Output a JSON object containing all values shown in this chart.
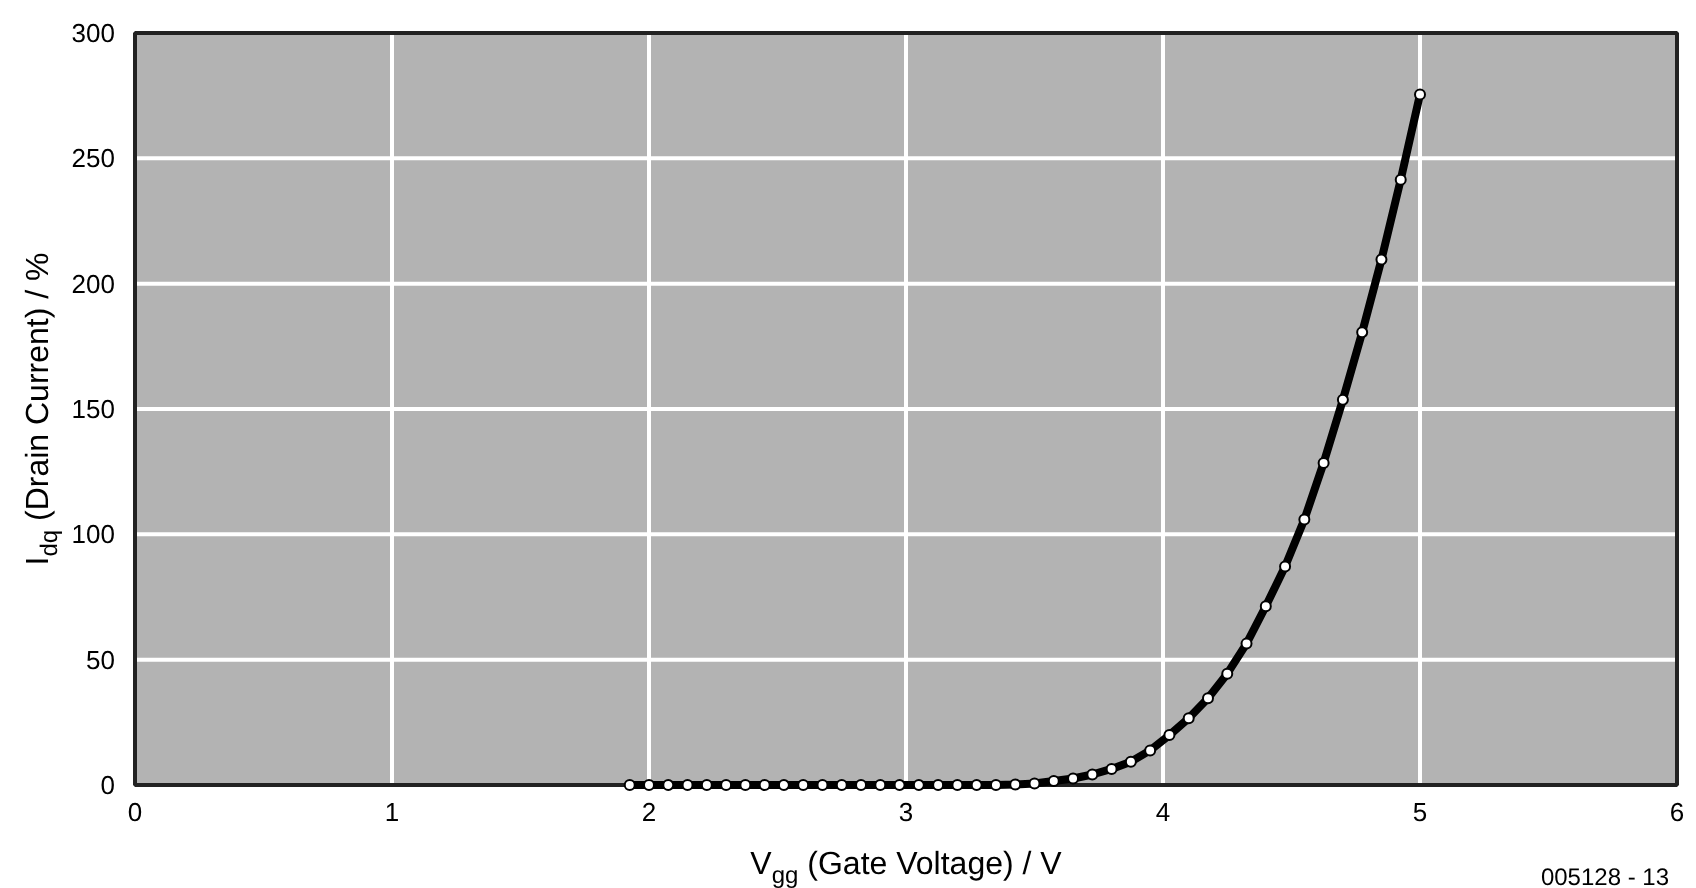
{
  "chart_data": {
    "type": "line",
    "xlabel": "V$_{gg}$ (Gate Voltage) / V",
    "ylabel": "I$_{dq}$ (Drain Current) / %",
    "annotations": [
      "005128 - 13"
    ],
    "x": [
      1.925,
      2.0,
      2.075,
      2.15,
      2.225,
      2.3,
      2.375,
      2.45,
      2.525,
      2.6,
      2.675,
      2.75,
      2.825,
      2.9,
      2.975,
      3.05,
      3.125,
      3.2,
      3.275,
      3.35,
      3.425,
      3.5,
      3.575,
      3.65,
      3.725,
      3.8,
      3.875,
      3.95,
      4.025,
      4.1,
      4.175,
      4.25,
      4.325,
      4.4,
      4.475,
      4.55,
      4.625,
      4.7,
      4.775,
      4.85,
      4.925,
      5.0
    ],
    "series": [
      {
        "color": "#000000",
        "values": [
          0,
          0,
          0,
          0,
          0,
          0,
          0,
          0,
          0,
          0,
          0,
          0,
          0,
          0,
          0,
          0,
          0,
          0,
          0,
          0,
          0.2,
          0.6,
          1.6,
          2.6,
          4.2,
          6.4,
          9.3,
          13.8,
          19.9,
          26.6,
          34.6,
          44.4,
          56.4,
          71.3,
          87.2,
          105.9,
          128.5,
          153.7,
          180.6,
          209.6,
          241.5,
          275.5
        ]
      }
    ],
    "xlim": [
      0,
      6
    ],
    "ylim": [
      0,
      300
    ],
    "xticks": [
      0,
      1,
      2,
      3,
      4,
      5,
      6
    ],
    "yticks": [
      0,
      50,
      100,
      150,
      200,
      250,
      300
    ],
    "grid": true,
    "marker": "circle",
    "line_style": "solid"
  }
}
